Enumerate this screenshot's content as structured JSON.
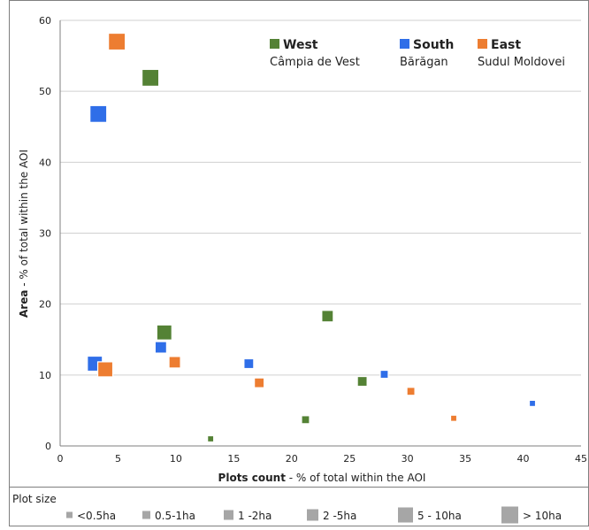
{
  "chart_data": {
    "type": "scatter",
    "xlabel_bold": "Plots count",
    "xlabel_rest": " - % of total within the AOI",
    "ylabel_bold": "Area",
    "ylabel_rest": " - % of total within the AOI",
    "xlim": [
      0,
      45
    ],
    "ylim": [
      0,
      60
    ],
    "xticks": [
      0,
      5,
      10,
      15,
      20,
      25,
      30,
      35,
      40,
      45
    ],
    "yticks": [
      0,
      10,
      20,
      30,
      40,
      50,
      60
    ],
    "grid": "horizontal",
    "legend_position": "top-right",
    "series": [
      {
        "name": "West",
        "region": "Câmpia de Vest",
        "color": "#548235",
        "points": [
          {
            "x": 13.0,
            "y": 1.0,
            "size_class": 0
          },
          {
            "x": 21.2,
            "y": 3.7,
            "size_class": 1
          },
          {
            "x": 26.1,
            "y": 9.1,
            "size_class": 2
          },
          {
            "x": 23.1,
            "y": 18.3,
            "size_class": 3
          },
          {
            "x": 9.0,
            "y": 16.0,
            "size_class": 4
          },
          {
            "x": 7.8,
            "y": 51.9,
            "size_class": 5
          }
        ]
      },
      {
        "name": "South",
        "region": "Bărăgan",
        "color": "#2f6ee8",
        "points": [
          {
            "x": 40.8,
            "y": 6.0,
            "size_class": 0
          },
          {
            "x": 28.0,
            "y": 10.1,
            "size_class": 1
          },
          {
            "x": 16.3,
            "y": 11.6,
            "size_class": 2
          },
          {
            "x": 8.7,
            "y": 13.9,
            "size_class": 3
          },
          {
            "x": 3.0,
            "y": 11.6,
            "size_class": 4
          },
          {
            "x": 3.3,
            "y": 46.8,
            "size_class": 5
          }
        ]
      },
      {
        "name": "East",
        "region": "Sudul Moldovei",
        "color": "#ed7d31",
        "points": [
          {
            "x": 34.0,
            "y": 3.9,
            "size_class": 0
          },
          {
            "x": 30.3,
            "y": 7.7,
            "size_class": 1
          },
          {
            "x": 17.2,
            "y": 8.9,
            "size_class": 2
          },
          {
            "x": 9.9,
            "y": 11.8,
            "size_class": 3
          },
          {
            "x": 3.9,
            "y": 10.8,
            "size_class": 4
          },
          {
            "x": 4.9,
            "y": 57.0,
            "size_class": 5
          }
        ]
      }
    ],
    "size_legend": {
      "title": "Plot size",
      "color": "#a6a6a6",
      "classes": [
        "<0.5ha",
        "0.5-1ha",
        "1 -2ha",
        "2 -5ha",
        "5 - 10ha",
        "> 10ha"
      ]
    }
  }
}
